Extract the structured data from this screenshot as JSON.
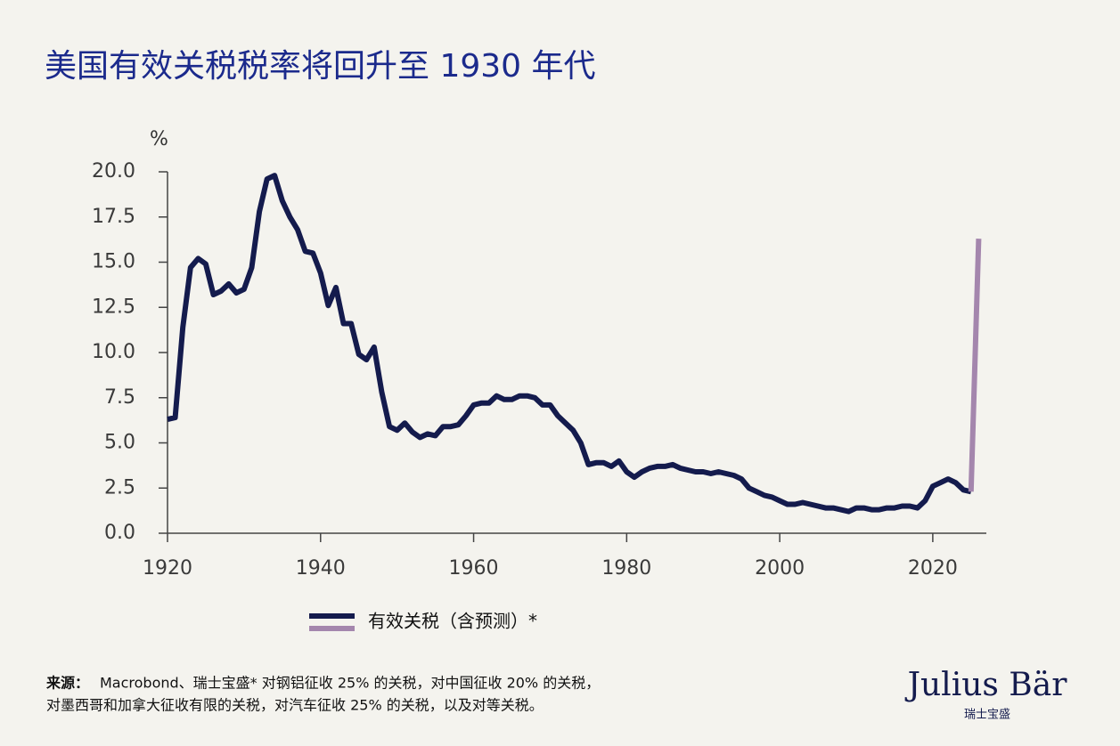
{
  "chart_data": {
    "type": "line",
    "title": "美国有效关税税率将回升至 1930 年代",
    "y_unit": "%",
    "series": [
      {
        "name": "有效关税（含预测）*",
        "color": "#141b4d",
        "x": [
          1920,
          1921,
          1922,
          1923,
          1924,
          1925,
          1926,
          1927,
          1928,
          1929,
          1930,
          1931,
          1932,
          1933,
          1934,
          1935,
          1936,
          1937,
          1938,
          1939,
          1940,
          1941,
          1942,
          1943,
          1944,
          1945,
          1946,
          1947,
          1948,
          1949,
          1950,
          1951,
          1952,
          1953,
          1954,
          1955,
          1956,
          1957,
          1958,
          1959,
          1960,
          1961,
          1962,
          1963,
          1964,
          1965,
          1966,
          1967,
          1968,
          1969,
          1970,
          1971,
          1972,
          1973,
          1974,
          1975,
          1976,
          1977,
          1978,
          1979,
          1980,
          1981,
          1982,
          1983,
          1984,
          1985,
          1986,
          1987,
          1988,
          1989,
          1990,
          1991,
          1992,
          1993,
          1994,
          1995,
          1996,
          1997,
          1998,
          1999,
          2000,
          2001,
          2002,
          2003,
          2004,
          2005,
          2006,
          2007,
          2008,
          2009,
          2010,
          2011,
          2012,
          2013,
          2014,
          2015,
          2016,
          2017,
          2018,
          2019,
          2020,
          2021,
          2022,
          2023,
          2024,
          2025
        ],
        "values": [
          6.3,
          6.4,
          11.4,
          14.7,
          15.2,
          14.9,
          13.2,
          13.4,
          13.8,
          13.3,
          13.5,
          14.7,
          17.8,
          19.6,
          19.8,
          18.4,
          17.5,
          16.8,
          15.6,
          15.5,
          14.4,
          12.6,
          13.6,
          11.6,
          11.6,
          9.9,
          9.6,
          10.3,
          7.8,
          5.9,
          5.7,
          6.1,
          5.6,
          5.3,
          5.5,
          5.4,
          5.9,
          5.9,
          6.0,
          6.5,
          7.1,
          7.2,
          7.2,
          7.6,
          7.4,
          7.4,
          7.6,
          7.6,
          7.5,
          7.1,
          7.1,
          6.5,
          6.1,
          5.7,
          5.0,
          3.8,
          3.9,
          3.9,
          3.7,
          4.0,
          3.4,
          3.1,
          3.4,
          3.6,
          3.7,
          3.7,
          3.8,
          3.6,
          3.5,
          3.4,
          3.4,
          3.3,
          3.4,
          3.3,
          3.2,
          3.0,
          2.5,
          2.3,
          2.1,
          2.0,
          1.8,
          1.6,
          1.6,
          1.7,
          1.6,
          1.5,
          1.4,
          1.4,
          1.3,
          1.2,
          1.4,
          1.4,
          1.3,
          1.3,
          1.4,
          1.4,
          1.5,
          1.5,
          1.4,
          1.8,
          2.6,
          2.8,
          3.0,
          2.8,
          2.4,
          2.3
        ]
      },
      {
        "color": "#a486ad",
        "x": [
          2025,
          2026
        ],
        "values": [
          2.3,
          16.3
        ]
      }
    ],
    "xlim": [
      1920,
      2027
    ],
    "xticks": [
      1920,
      1940,
      1960,
      1980,
      2000,
      2020
    ],
    "ylim": [
      0,
      20
    ],
    "yticks": [
      {
        "value": 0,
        "label": "0.0"
      },
      {
        "value": 2.5,
        "label": "2.5"
      },
      {
        "value": 5,
        "label": "5.0"
      },
      {
        "value": 7.5,
        "label": "7.5"
      },
      {
        "value": 10,
        "label": "10.0"
      },
      {
        "value": 12.5,
        "label": "12.5"
      },
      {
        "value": 15,
        "label": "15.0"
      },
      {
        "value": 17.5,
        "label": "17.5"
      },
      {
        "value": 20,
        "label": "20.0"
      }
    ],
    "grid": false
  },
  "source": {
    "label": "来源：",
    "lines": [
      "Macrobond、瑞士宝盛* 对钢铝征收 25% 的关税，对中国征收 20% 的关税，",
      "对墨西哥和加拿大征收有限的关税，对汽车征收 25% 的关税，以及对等关税。"
    ]
  },
  "logo": {
    "name": "Julius Bär",
    "subname": "瑞士宝盛"
  }
}
